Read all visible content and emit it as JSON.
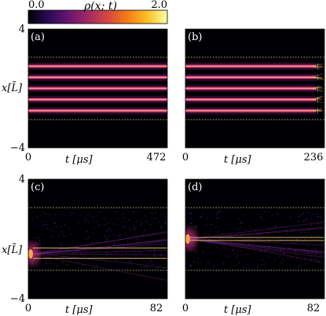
{
  "figure": {
    "colorbar": {
      "label": "ρ(x; t)",
      "min_label": "0.0",
      "max_label": "2.0",
      "min": 0.0,
      "max": 2.0,
      "colormap": [
        "#000004",
        "#280b54",
        "#65156e",
        "#9f2a63",
        "#d44842",
        "#f57d15",
        "#fac127",
        "#fcffa4"
      ]
    },
    "y_label": "x[L̄]",
    "x_label": "t [μs]"
  },
  "chart_data": [
    {
      "type": "heatmap",
      "panel": "(a)",
      "x_ticks": [
        "0",
        "472"
      ],
      "xlim": [
        0,
        472
      ],
      "y_ticks": [
        "4",
        "−4"
      ],
      "ylim": [
        -4,
        4
      ],
      "boundaries_y": [
        2.1,
        -2.1
      ],
      "features": {
        "kind": "stripes",
        "y": [
          1.5,
          0.75,
          0.0,
          -0.75,
          -1.5
        ],
        "end_t_fraction": 1.0,
        "frayed_end": false
      }
    },
    {
      "type": "heatmap",
      "panel": "(b)",
      "x_ticks": [
        "0",
        "236"
      ],
      "xlim": [
        0,
        236
      ],
      "y_ticks": [],
      "ylim": [
        -4,
        4
      ],
      "boundaries_y": [
        2.1,
        -2.1
      ],
      "features": {
        "kind": "stripes",
        "y": [
          1.5,
          0.75,
          0.0,
          -0.75,
          -1.5
        ],
        "end_t_fraction": 0.94,
        "frayed_end": true
      }
    },
    {
      "type": "heatmap",
      "panel": "(c)",
      "x_ticks": [
        "0",
        "82"
      ],
      "xlim": [
        0,
        82
      ],
      "y_ticks": [
        "4",
        "−4"
      ],
      "ylim": [
        -4,
        4
      ],
      "boundaries_y": [
        2.1,
        -2.1
      ],
      "features": {
        "kind": "cluster",
        "source_y": -1.0,
        "lines_y": [
          -0.6,
          -1.3
        ],
        "spread": "diffuse"
      }
    },
    {
      "type": "heatmap",
      "panel": "(d)",
      "x_ticks": [
        "0",
        "82"
      ],
      "xlim": [
        0,
        82
      ],
      "y_ticks": [],
      "ylim": [
        -4,
        4
      ],
      "boundaries_y": [
        2.1,
        -2.1
      ],
      "features": {
        "kind": "cluster",
        "source_y": 0.0,
        "lines_y": [
          0.1,
          -0.1
        ],
        "spread": "diffuse"
      }
    }
  ]
}
